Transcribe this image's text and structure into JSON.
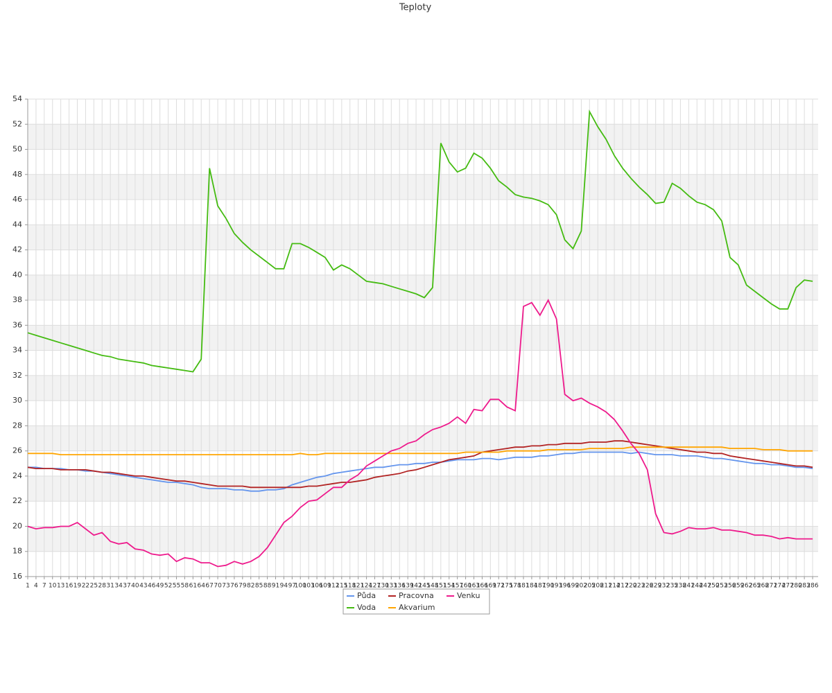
{
  "chart_data": {
    "type": "line",
    "title": "Teploty",
    "x": [
      1,
      4,
      7,
      10,
      13,
      16,
      19,
      22,
      25,
      28,
      31,
      34,
      37,
      40,
      43,
      46,
      49,
      52,
      55,
      58,
      61,
      64,
      67,
      70,
      73,
      76,
      79,
      82,
      85,
      88,
      91,
      94,
      97,
      100,
      103,
      106,
      109,
      112,
      115,
      118,
      121,
      124,
      127,
      130,
      133,
      136,
      139,
      142,
      145,
      148,
      151,
      154,
      157,
      160,
      163,
      166,
      169,
      172,
      175,
      178,
      181,
      184,
      187,
      190,
      193,
      196,
      199,
      202,
      205,
      208,
      211,
      214,
      217,
      220,
      223,
      226,
      229,
      232,
      235,
      238,
      241,
      244,
      247,
      250,
      253,
      256,
      259,
      262,
      265,
      268,
      271,
      274,
      277,
      280,
      283,
      286
    ],
    "xlim": [
      1,
      288
    ],
    "ylim": [
      16,
      54
    ],
    "yticks": [
      16,
      18,
      20,
      22,
      24,
      26,
      28,
      30,
      32,
      34,
      36,
      38,
      40,
      42,
      44,
      46,
      48,
      50,
      52,
      54
    ],
    "grid": true,
    "legend": "bottom",
    "series": [
      {
        "name": "Půda",
        "color": "#6495ed",
        "values": [
          24.7,
          24.7,
          24.6,
          24.6,
          24.6,
          24.5,
          24.5,
          24.4,
          24.4,
          24.3,
          24.2,
          24.1,
          24.0,
          23.9,
          23.8,
          23.7,
          23.6,
          23.5,
          23.5,
          23.4,
          23.3,
          23.1,
          23.0,
          23.0,
          23.0,
          22.9,
          22.9,
          22.8,
          22.8,
          22.9,
          22.9,
          23.0,
          23.3,
          23.5,
          23.7,
          23.9,
          24.0,
          24.2,
          24.3,
          24.4,
          24.5,
          24.6,
          24.7,
          24.7,
          24.8,
          24.9,
          24.9,
          25.0,
          25.0,
          25.1,
          25.1,
          25.2,
          25.3,
          25.3,
          25.3,
          25.4,
          25.4,
          25.3,
          25.4,
          25.5,
          25.5,
          25.5,
          25.6,
          25.6,
          25.7,
          25.8,
          25.8,
          25.9,
          25.9,
          25.9,
          25.9,
          25.9,
          25.9,
          25.8,
          25.9,
          25.8,
          25.7,
          25.7,
          25.7,
          25.6,
          25.6,
          25.6,
          25.5,
          25.4,
          25.4,
          25.3,
          25.2,
          25.1,
          25.0,
          25.0,
          24.9,
          24.9,
          24.8,
          24.7,
          24.7,
          24.6
        ]
      },
      {
        "name": "Voda",
        "color": "#44bb11",
        "values": [
          35.4,
          35.2,
          35.0,
          34.8,
          34.6,
          34.4,
          34.2,
          34.0,
          33.8,
          33.6,
          33.5,
          33.3,
          33.2,
          33.1,
          33.0,
          32.8,
          32.7,
          32.6,
          32.5,
          32.4,
          32.3,
          33.3,
          48.5,
          45.5,
          44.5,
          43.3,
          42.6,
          42.0,
          41.5,
          41.0,
          40.5,
          40.5,
          42.5,
          42.5,
          42.2,
          41.8,
          41.4,
          40.4,
          40.8,
          40.5,
          40.0,
          39.5,
          39.4,
          39.3,
          39.1,
          38.9,
          38.7,
          38.5,
          38.2,
          39.0,
          50.5,
          49.0,
          48.2,
          48.5,
          49.7,
          49.3,
          48.5,
          47.5,
          47.0,
          46.4,
          46.2,
          46.1,
          45.9,
          45.6,
          44.8,
          42.8,
          42.1,
          43.5,
          53.0,
          51.8,
          50.8,
          49.5,
          48.5,
          47.7,
          47.0,
          46.4,
          45.7,
          45.8,
          47.3,
          46.9,
          46.3,
          45.8,
          45.6,
          45.2,
          44.3,
          41.4,
          40.8,
          39.2,
          38.7,
          38.2,
          37.7,
          37.3,
          37.3,
          39.0,
          39.6,
          39.5
        ]
      },
      {
        "name": "Pracovna",
        "color": "#b22222",
        "values": [
          24.7,
          24.6,
          24.6,
          24.6,
          24.5,
          24.5,
          24.5,
          24.5,
          24.4,
          24.3,
          24.3,
          24.2,
          24.1,
          24.0,
          24.0,
          23.9,
          23.8,
          23.7,
          23.6,
          23.6,
          23.5,
          23.4,
          23.3,
          23.2,
          23.2,
          23.2,
          23.2,
          23.1,
          23.1,
          23.1,
          23.1,
          23.1,
          23.1,
          23.1,
          23.2,
          23.2,
          23.3,
          23.4,
          23.5,
          23.5,
          23.6,
          23.7,
          23.9,
          24.0,
          24.1,
          24.2,
          24.4,
          24.5,
          24.7,
          24.9,
          25.1,
          25.3,
          25.4,
          25.5,
          25.6,
          25.9,
          26.0,
          26.1,
          26.2,
          26.3,
          26.3,
          26.4,
          26.4,
          26.5,
          26.5,
          26.6,
          26.6,
          26.6,
          26.7,
          26.7,
          26.7,
          26.8,
          26.8,
          26.7,
          26.6,
          26.5,
          26.4,
          26.3,
          26.2,
          26.1,
          26.0,
          25.9,
          25.9,
          25.8,
          25.8,
          25.6,
          25.5,
          25.4,
          25.3,
          25.2,
          25.1,
          25.0,
          24.9,
          24.8,
          24.8,
          24.7
        ]
      },
      {
        "name": "Akvarium",
        "color": "#ffa500",
        "values": [
          25.8,
          25.8,
          25.8,
          25.8,
          25.7,
          25.7,
          25.7,
          25.7,
          25.7,
          25.7,
          25.7,
          25.7,
          25.7,
          25.7,
          25.7,
          25.7,
          25.7,
          25.7,
          25.7,
          25.7,
          25.7,
          25.7,
          25.7,
          25.7,
          25.7,
          25.7,
          25.7,
          25.7,
          25.7,
          25.7,
          25.7,
          25.7,
          25.7,
          25.8,
          25.7,
          25.7,
          25.8,
          25.8,
          25.8,
          25.8,
          25.8,
          25.8,
          25.8,
          25.8,
          25.8,
          25.8,
          25.8,
          25.8,
          25.8,
          25.8,
          25.8,
          25.8,
          25.8,
          25.9,
          25.9,
          25.9,
          25.9,
          25.9,
          26.0,
          26.0,
          26.0,
          26.0,
          26.0,
          26.1,
          26.1,
          26.1,
          26.1,
          26.1,
          26.2,
          26.2,
          26.2,
          26.2,
          26.2,
          26.3,
          26.3,
          26.3,
          26.3,
          26.3,
          26.3,
          26.3,
          26.3,
          26.3,
          26.3,
          26.3,
          26.3,
          26.2,
          26.2,
          26.2,
          26.2,
          26.1,
          26.1,
          26.1,
          26.0,
          26.0,
          26.0,
          26.0
        ]
      },
      {
        "name": "Venku",
        "color": "#ee1a8c",
        "values": [
          20.0,
          19.8,
          19.9,
          19.9,
          20.0,
          20.0,
          20.3,
          19.8,
          19.3,
          19.5,
          18.8,
          18.6,
          18.7,
          18.2,
          18.1,
          17.8,
          17.7,
          17.8,
          17.2,
          17.5,
          17.4,
          17.1,
          17.1,
          16.8,
          16.9,
          17.2,
          17.0,
          17.2,
          17.6,
          18.3,
          19.3,
          20.3,
          20.8,
          21.5,
          22.0,
          22.1,
          22.6,
          23.1,
          23.1,
          23.7,
          24.1,
          24.8,
          25.2,
          25.6,
          26.0,
          26.2,
          26.6,
          26.8,
          27.3,
          27.7,
          27.9,
          28.2,
          28.7,
          28.2,
          29.3,
          29.2,
          30.1,
          30.1,
          29.5,
          29.2,
          37.5,
          37.8,
          36.8,
          38.0,
          36.5,
          30.5,
          30.0,
          30.2,
          29.8,
          29.5,
          29.1,
          28.5,
          27.6,
          26.6,
          25.8,
          24.5,
          21.0,
          19.5,
          19.4,
          19.6,
          19.9,
          19.8,
          19.8,
          19.9,
          19.7,
          19.7,
          19.6,
          19.5,
          19.3,
          19.3,
          19.2,
          19.0,
          19.1,
          19.0,
          19.0,
          19.0
        ]
      }
    ]
  }
}
